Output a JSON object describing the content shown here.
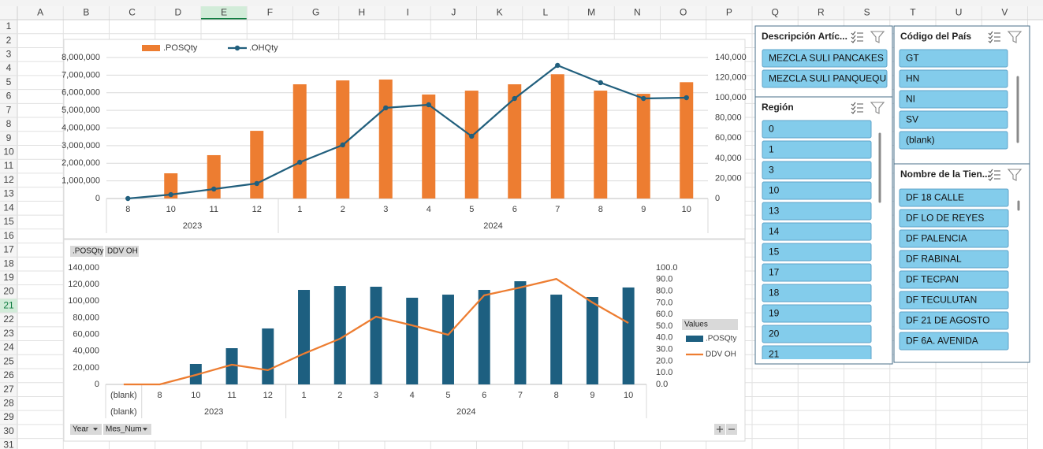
{
  "columns": [
    "A",
    "B",
    "C",
    "D",
    "E",
    "F",
    "G",
    "H",
    "I",
    "J",
    "K",
    "L",
    "M",
    "N",
    "O",
    "P",
    "Q",
    "R",
    "S",
    "T",
    "U",
    "V"
  ],
  "rows": [
    1,
    2,
    3,
    4,
    5,
    6,
    7,
    8,
    9,
    10,
    11,
    12,
    13,
    14,
    15,
    16,
    17,
    18,
    19,
    20,
    21,
    22,
    23,
    24,
    25,
    26,
    27,
    28,
    29,
    30,
    31
  ],
  "chart_data": [
    {
      "type": "combo",
      "legend_position": "top",
      "grid": true,
      "groups": [
        {
          "name": "2023",
          "categories": [
            "8",
            "10",
            "11",
            "12"
          ]
        },
        {
          "name": "2024",
          "categories": [
            "1",
            "2",
            "3",
            "4",
            "5",
            "6",
            "7",
            "8",
            "9",
            "10"
          ]
        }
      ],
      "series": [
        {
          "name": ".POSQty",
          "type": "bar",
          "color": "#ed7d31",
          "values": [
            0,
            1430000,
            2460000,
            3840000,
            6480000,
            6700000,
            6750000,
            5900000,
            6120000,
            6480000,
            7050000,
            6120000,
            5940000,
            6600000
          ]
        },
        {
          "name": ".OHQty",
          "type": "line",
          "axis": "y2",
          "markers": true,
          "color": "#215f7d",
          "values": [
            0,
            3900,
            9400,
            14900,
            36000,
            53200,
            90000,
            93100,
            61800,
            99300,
            132200,
            115000,
            99300,
            100100
          ]
        }
      ],
      "ylim": [
        0,
        8000000
      ],
      "yticks": [
        0,
        {
          "value": 1000000,
          "label": "1,000,000"
        },
        {
          "value": 2000000,
          "label": "2,000,000"
        },
        {
          "value": 3000000,
          "label": "3,000,000"
        },
        {
          "value": 4000000,
          "label": "4,000,000"
        },
        {
          "value": 5000000,
          "label": "5,000,000"
        },
        {
          "value": 6000000,
          "label": "6,000,000"
        },
        {
          "value": 7000000,
          "label": "7,000,000"
        },
        {
          "value": 8000000,
          "label": "8,000,000"
        }
      ],
      "y2lim": [
        0,
        140000
      ],
      "y2ticks": [
        0,
        {
          "value": 20000,
          "label": "20,000"
        },
        {
          "value": 40000,
          "label": "40,000"
        },
        {
          "value": 60000,
          "label": "60,000"
        },
        {
          "value": 80000,
          "label": "80,000"
        },
        {
          "value": 100000,
          "label": "100,000"
        },
        {
          "value": 120000,
          "label": "120,000"
        },
        {
          "value": 140000,
          "label": "140,000"
        }
      ]
    },
    {
      "type": "combo",
      "legend_position": "right",
      "legend_title": "Values",
      "grid": false,
      "field_buttons_top": [
        ".POSQty",
        "DDV OH"
      ],
      "field_buttons_bottom": [
        "Year",
        "Mes_Num"
      ],
      "groups": [
        {
          "name": "(blank)",
          "categories": [
            "(blank)"
          ]
        },
        {
          "name": "2023",
          "categories": [
            "8",
            "10",
            "11",
            "12"
          ]
        },
        {
          "name": "2024",
          "categories": [
            "1",
            "2",
            "3",
            "4",
            "5",
            "6",
            "7",
            "8",
            "9",
            "10"
          ]
        }
      ],
      "series": [
        {
          "name": ".POSQty",
          "type": "bar",
          "color": "#1d5f80",
          "values": [
            0,
            0,
            24600,
            43500,
            67200,
            113500,
            118200,
            117300,
            104100,
            107800,
            113500,
            123900,
            107800,
            105000,
            116400
          ]
        },
        {
          "name": "DDV OH",
          "type": "line",
          "axis": "y2",
          "markers": false,
          "color": "#ed7d31",
          "values": [
            0,
            0,
            8.1,
            16.9,
            12.2,
            26.4,
            39.2,
            58.1,
            50.7,
            42.6,
            76.4,
            83.1,
            90.5,
            70.3,
            52.7
          ]
        }
      ],
      "ylim": [
        0,
        140000
      ],
      "yticks": [
        0,
        {
          "value": 20000,
          "label": "20,000"
        },
        {
          "value": 40000,
          "label": "40,000"
        },
        {
          "value": 60000,
          "label": "60,000"
        },
        {
          "value": 80000,
          "label": "80,000"
        },
        {
          "value": 100000,
          "label": "100,000"
        },
        {
          "value": 120000,
          "label": "120,000"
        },
        {
          "value": 140000,
          "label": "140,000"
        }
      ],
      "y2lim": [
        0,
        100
      ],
      "y2ticks": [
        {
          "value": 0,
          "label": "0.0"
        },
        {
          "value": 10,
          "label": "10.0"
        },
        {
          "value": 20,
          "label": "20.0"
        },
        {
          "value": 30,
          "label": "30.0"
        },
        {
          "value": 40,
          "label": "40.0"
        },
        {
          "value": 50,
          "label": "50.0"
        },
        {
          "value": 60,
          "label": "60.0"
        },
        {
          "value": 70,
          "label": "70.0"
        },
        {
          "value": 80,
          "label": "80.0"
        },
        {
          "value": 90,
          "label": "90.0"
        },
        {
          "value": 100,
          "label": "100.0"
        }
      ]
    }
  ],
  "slicers": [
    {
      "title": "Descripción Artíc...",
      "items": [
        "MEZCLA SULI PANCAKES",
        "MEZCLA SULI PANQUEQU"
      ]
    },
    {
      "title": "Región",
      "items": [
        "0",
        "1",
        "3",
        "10",
        "13",
        "14",
        "15",
        "17",
        "18",
        "19",
        "20",
        "21"
      ]
    },
    {
      "title": "Código del País",
      "items": [
        "GT",
        "HN",
        "NI",
        "SV",
        "(blank)"
      ]
    },
    {
      "title": "Nombre de la Tien...",
      "items": [
        "DF 18 CALLE",
        "DF LO DE REYES",
        "DF PALENCIA",
        "DF RABINAL",
        "DF TECPAN",
        "DF TECULUTAN",
        "DF 21 DE AGOSTO",
        "DF 6A. AVENIDA"
      ]
    }
  ]
}
